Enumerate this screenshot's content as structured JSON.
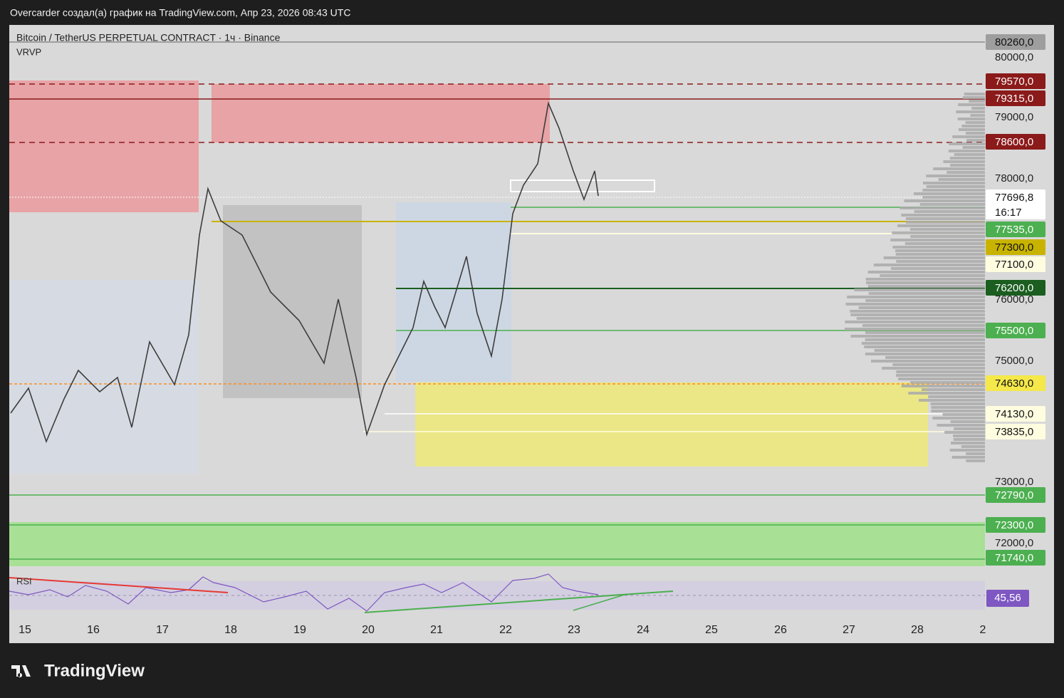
{
  "header": {
    "text": "Overcarder создал(а) график на TradingView.com, Апр 23, 2026 08:43 UTC"
  },
  "chart": {
    "symbol": "Bitcoin / TetherUS PERPETUAL CONTRACT · 1ч · Binance",
    "indicator": "VRVP"
  },
  "price_axis": {
    "labels": [
      "80260,0",
      "80000,0",
      "79570,0",
      "79315,0",
      "79000,0",
      "78600,0",
      "78000,0",
      "77696,8",
      "16:17",
      "77535,0",
      "77300,0",
      "77100,0",
      "76200,0",
      "76000,0",
      "75500,0",
      "75000,0",
      "74630,0",
      "74130,0",
      "73835,0",
      "73000,0",
      "72790,0",
      "72300,0",
      "72000,0",
      "71740,0"
    ]
  },
  "time_axis": {
    "labels": [
      "15",
      "16",
      "17",
      "18",
      "19",
      "20",
      "21",
      "22",
      "23",
      "24",
      "25",
      "26",
      "27",
      "28",
      "2"
    ]
  },
  "rsi": {
    "label": "RSI",
    "value": "45,56"
  },
  "footer": {
    "brand": "TradingView"
  }
}
